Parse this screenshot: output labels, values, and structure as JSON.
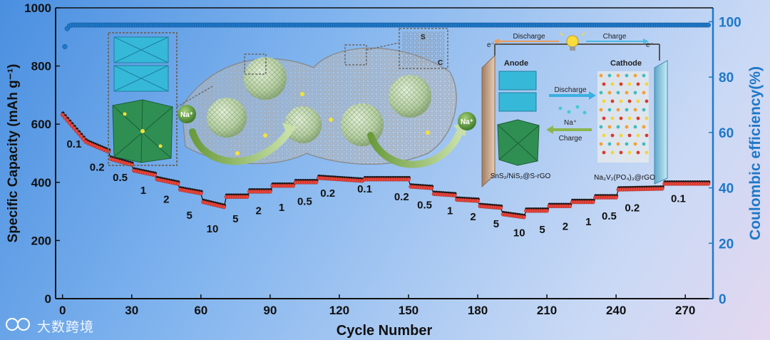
{
  "watermark": "大数跨境",
  "chart_data": {
    "type": "scatter",
    "xlabel": "Cycle Number",
    "ylabel_left": "Specific Capacity (mAh g⁻¹)",
    "ylabel_right": "Coulombic efficiency(%)",
    "xlim": [
      -3,
      282
    ],
    "ylim_left": [
      0,
      1000
    ],
    "ylim_right": [
      0,
      105
    ],
    "xticks": [
      0,
      30,
      60,
      90,
      120,
      150,
      180,
      210,
      240,
      270
    ],
    "yticks_left": [
      0,
      200,
      400,
      600,
      800,
      1000
    ],
    "yticks_right": [
      0,
      20,
      40,
      60,
      80,
      100
    ],
    "colors": {
      "capacity": "#e8453c",
      "efficiency": "#1f78c8",
      "axis_right": "#1f78c8"
    },
    "rate_labels": [
      {
        "text": "0.1",
        "cycle": 5,
        "capacity": 520
      },
      {
        "text": "0.2",
        "cycle": 15,
        "capacity": 440
      },
      {
        "text": "0.5",
        "cycle": 25,
        "capacity": 405
      },
      {
        "text": "1",
        "cycle": 35,
        "capacity": 360
      },
      {
        "text": "2",
        "cycle": 45,
        "capacity": 330
      },
      {
        "text": "5",
        "cycle": 55,
        "capacity": 275
      },
      {
        "text": "10",
        "cycle": 65,
        "capacity": 228
      },
      {
        "text": "5",
        "cycle": 75,
        "capacity": 262
      },
      {
        "text": "2",
        "cycle": 85,
        "capacity": 290
      },
      {
        "text": "1",
        "cycle": 95,
        "capacity": 302
      },
      {
        "text": "0.5",
        "cycle": 105,
        "capacity": 322
      },
      {
        "text": "0.2",
        "cycle": 115,
        "capacity": 350
      },
      {
        "text": "0.1",
        "cycle": 131,
        "capacity": 365
      },
      {
        "text": "0.2",
        "cycle": 147,
        "capacity": 338
      },
      {
        "text": "0.5",
        "cycle": 157,
        "capacity": 310
      },
      {
        "text": "1",
        "cycle": 168,
        "capacity": 290
      },
      {
        "text": "2",
        "cycle": 178,
        "capacity": 270
      },
      {
        "text": "5",
        "cycle": 188,
        "capacity": 245
      },
      {
        "text": "10",
        "cycle": 198,
        "capacity": 215
      },
      {
        "text": "5",
        "cycle": 208,
        "capacity": 226
      },
      {
        "text": "2",
        "cycle": 218,
        "capacity": 236
      },
      {
        "text": "1",
        "cycle": 228,
        "capacity": 252
      },
      {
        "text": "0.5",
        "cycle": 237,
        "capacity": 272
      },
      {
        "text": "0.2",
        "cycle": 247,
        "capacity": 300
      },
      {
        "text": "0.1",
        "cycle": 267,
        "capacity": 332
      }
    ],
    "series": [
      {
        "name": "Capacity",
        "segments": [
          {
            "cycles": [
              0,
              10
            ],
            "start": 632,
            "end": 540
          },
          {
            "cycles": [
              11,
              20
            ],
            "start": 535,
            "end": 505
          },
          {
            "cycles": [
              21,
              30
            ],
            "start": 480,
            "end": 460
          },
          {
            "cycles": [
              31,
              40
            ],
            "start": 440,
            "end": 425
          },
          {
            "cycles": [
              41,
              50
            ],
            "start": 410,
            "end": 395
          },
          {
            "cycles": [
              51,
              60
            ],
            "start": 375,
            "end": 362
          },
          {
            "cycles": [
              61,
              70
            ],
            "start": 332,
            "end": 315
          },
          {
            "cycles": [
              71,
              80
            ],
            "start": 350,
            "end": 350
          },
          {
            "cycles": [
              81,
              90
            ],
            "start": 368,
            "end": 368
          },
          {
            "cycles": [
              91,
              100
            ],
            "start": 388,
            "end": 388
          },
          {
            "cycles": [
              101,
              110
            ],
            "start": 400,
            "end": 400
          },
          {
            "cycles": [
              111,
              130
            ],
            "start": 415,
            "end": 405
          },
          {
            "cycles": [
              131,
              150
            ],
            "start": 410,
            "end": 410
          },
          {
            "cycles": [
              151,
              160
            ],
            "start": 385,
            "end": 380
          },
          {
            "cycles": [
              161,
              170
            ],
            "start": 360,
            "end": 355
          },
          {
            "cycles": [
              171,
              180
            ],
            "start": 340,
            "end": 336
          },
          {
            "cycles": [
              181,
              190
            ],
            "start": 318,
            "end": 312
          },
          {
            "cycles": [
              191,
              200
            ],
            "start": 290,
            "end": 280
          },
          {
            "cycles": [
              201,
              210
            ],
            "start": 302,
            "end": 302
          },
          {
            "cycles": [
              211,
              220
            ],
            "start": 318,
            "end": 318
          },
          {
            "cycles": [
              221,
              230
            ],
            "start": 332,
            "end": 332
          },
          {
            "cycles": [
              231,
              240
            ],
            "start": 348,
            "end": 348
          },
          {
            "cycles": [
              241,
              260
            ],
            "start": 375,
            "end": 378
          },
          {
            "cycles": [
              261,
              280
            ],
            "start": 395,
            "end": 395
          }
        ]
      },
      {
        "name": "Coulombic efficiency",
        "first_points": [
          [
            1,
            91
          ],
          [
            2,
            97.5
          ],
          [
            3,
            98.5
          ]
        ],
        "plateau_percent": 98.8
      }
    ]
  },
  "schematic": {
    "sodium_ion": "Na⁺",
    "lattice_s": "S",
    "lattice_c": "C",
    "electron": "e⁻",
    "discharge_top": "Discharge",
    "charge_top": "Charge",
    "anode": "Anode",
    "cathode": "Cathode",
    "discharge_mid": "Discharge",
    "na_mid": "Na⁺",
    "charge_mid": "Charge",
    "anode_formula": "SnS₂/NiS₂@S-rGO",
    "cathode_formula": "Na₃V₂(PO₄)₃@rGO"
  }
}
